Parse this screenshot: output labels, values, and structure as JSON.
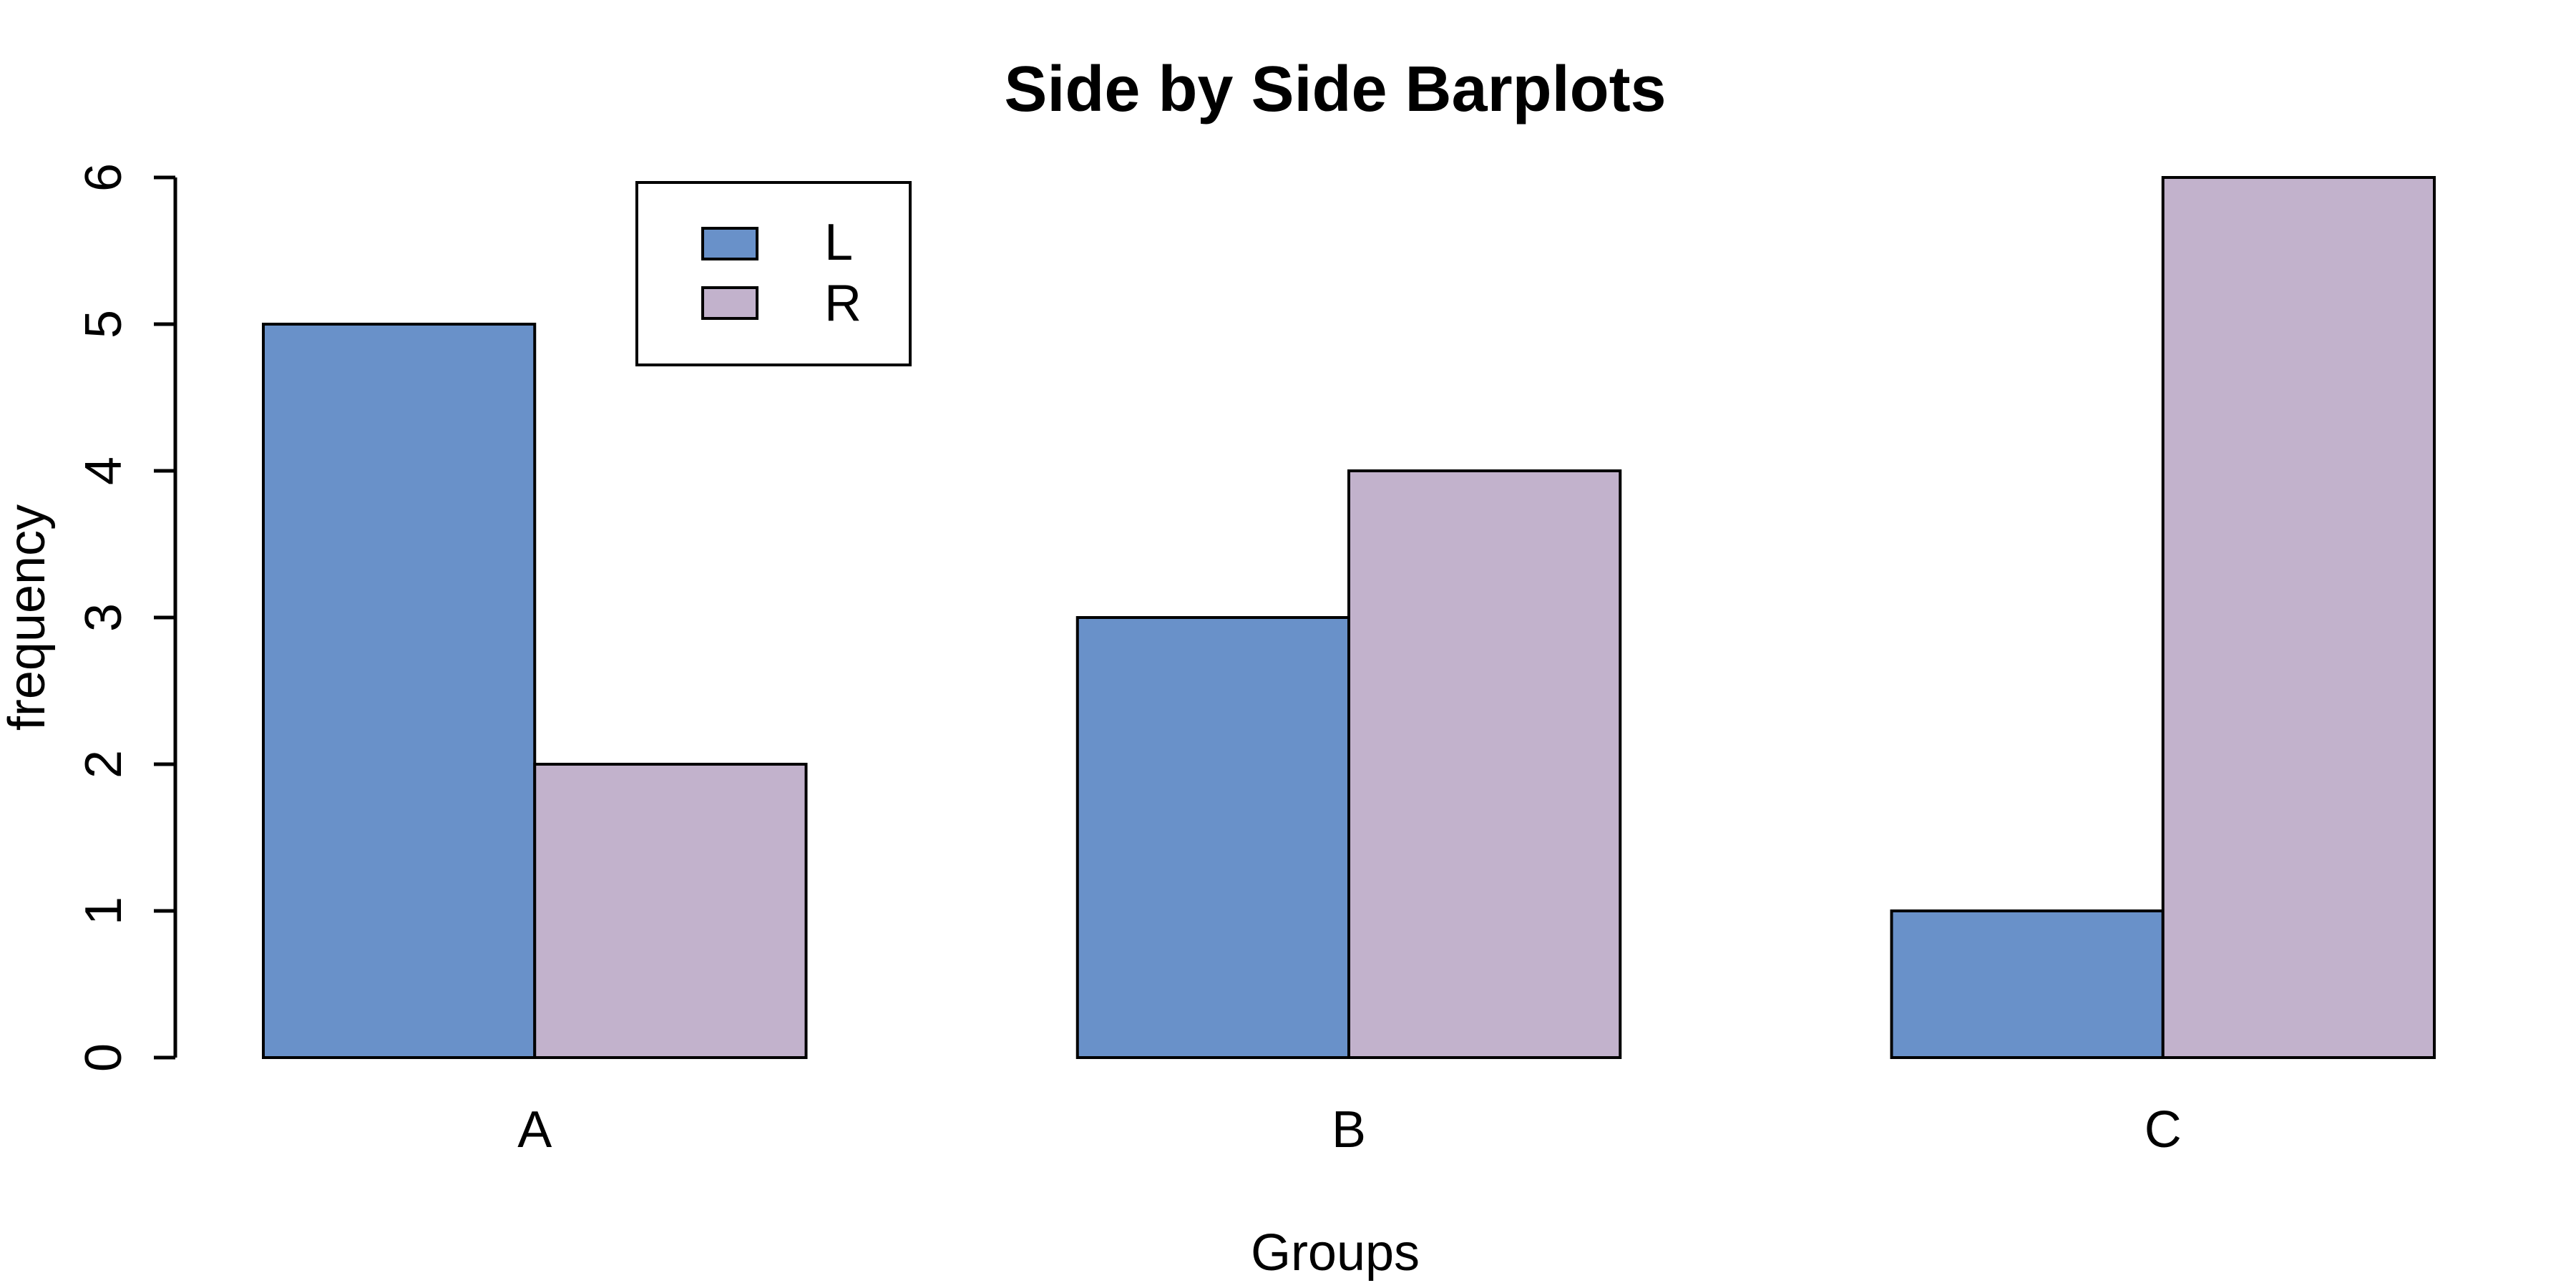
{
  "figure": {
    "title": "Side by Side Barplots"
  },
  "chart_data": {
    "type": "bar",
    "beside": true,
    "title": "Side by Side Barplots",
    "xlabel": "Groups",
    "ylabel": "frequency",
    "categories": [
      "A",
      "B",
      "C"
    ],
    "series": [
      {
        "name": "L",
        "color": "#6991C9",
        "values": [
          5,
          3,
          1
        ]
      },
      {
        "name": "R",
        "color": "#C2B2CC",
        "values": [
          2,
          4,
          6
        ]
      }
    ],
    "ylim": [
      0,
      6
    ],
    "yticks": [
      "0",
      "1",
      "2",
      "3",
      "4",
      "5",
      "6"
    ],
    "grid": false,
    "legend_position": "top-left-inside",
    "bar_border_color": "#000000",
    "axis_color": "#000000",
    "background_color": "#ffffff"
  }
}
